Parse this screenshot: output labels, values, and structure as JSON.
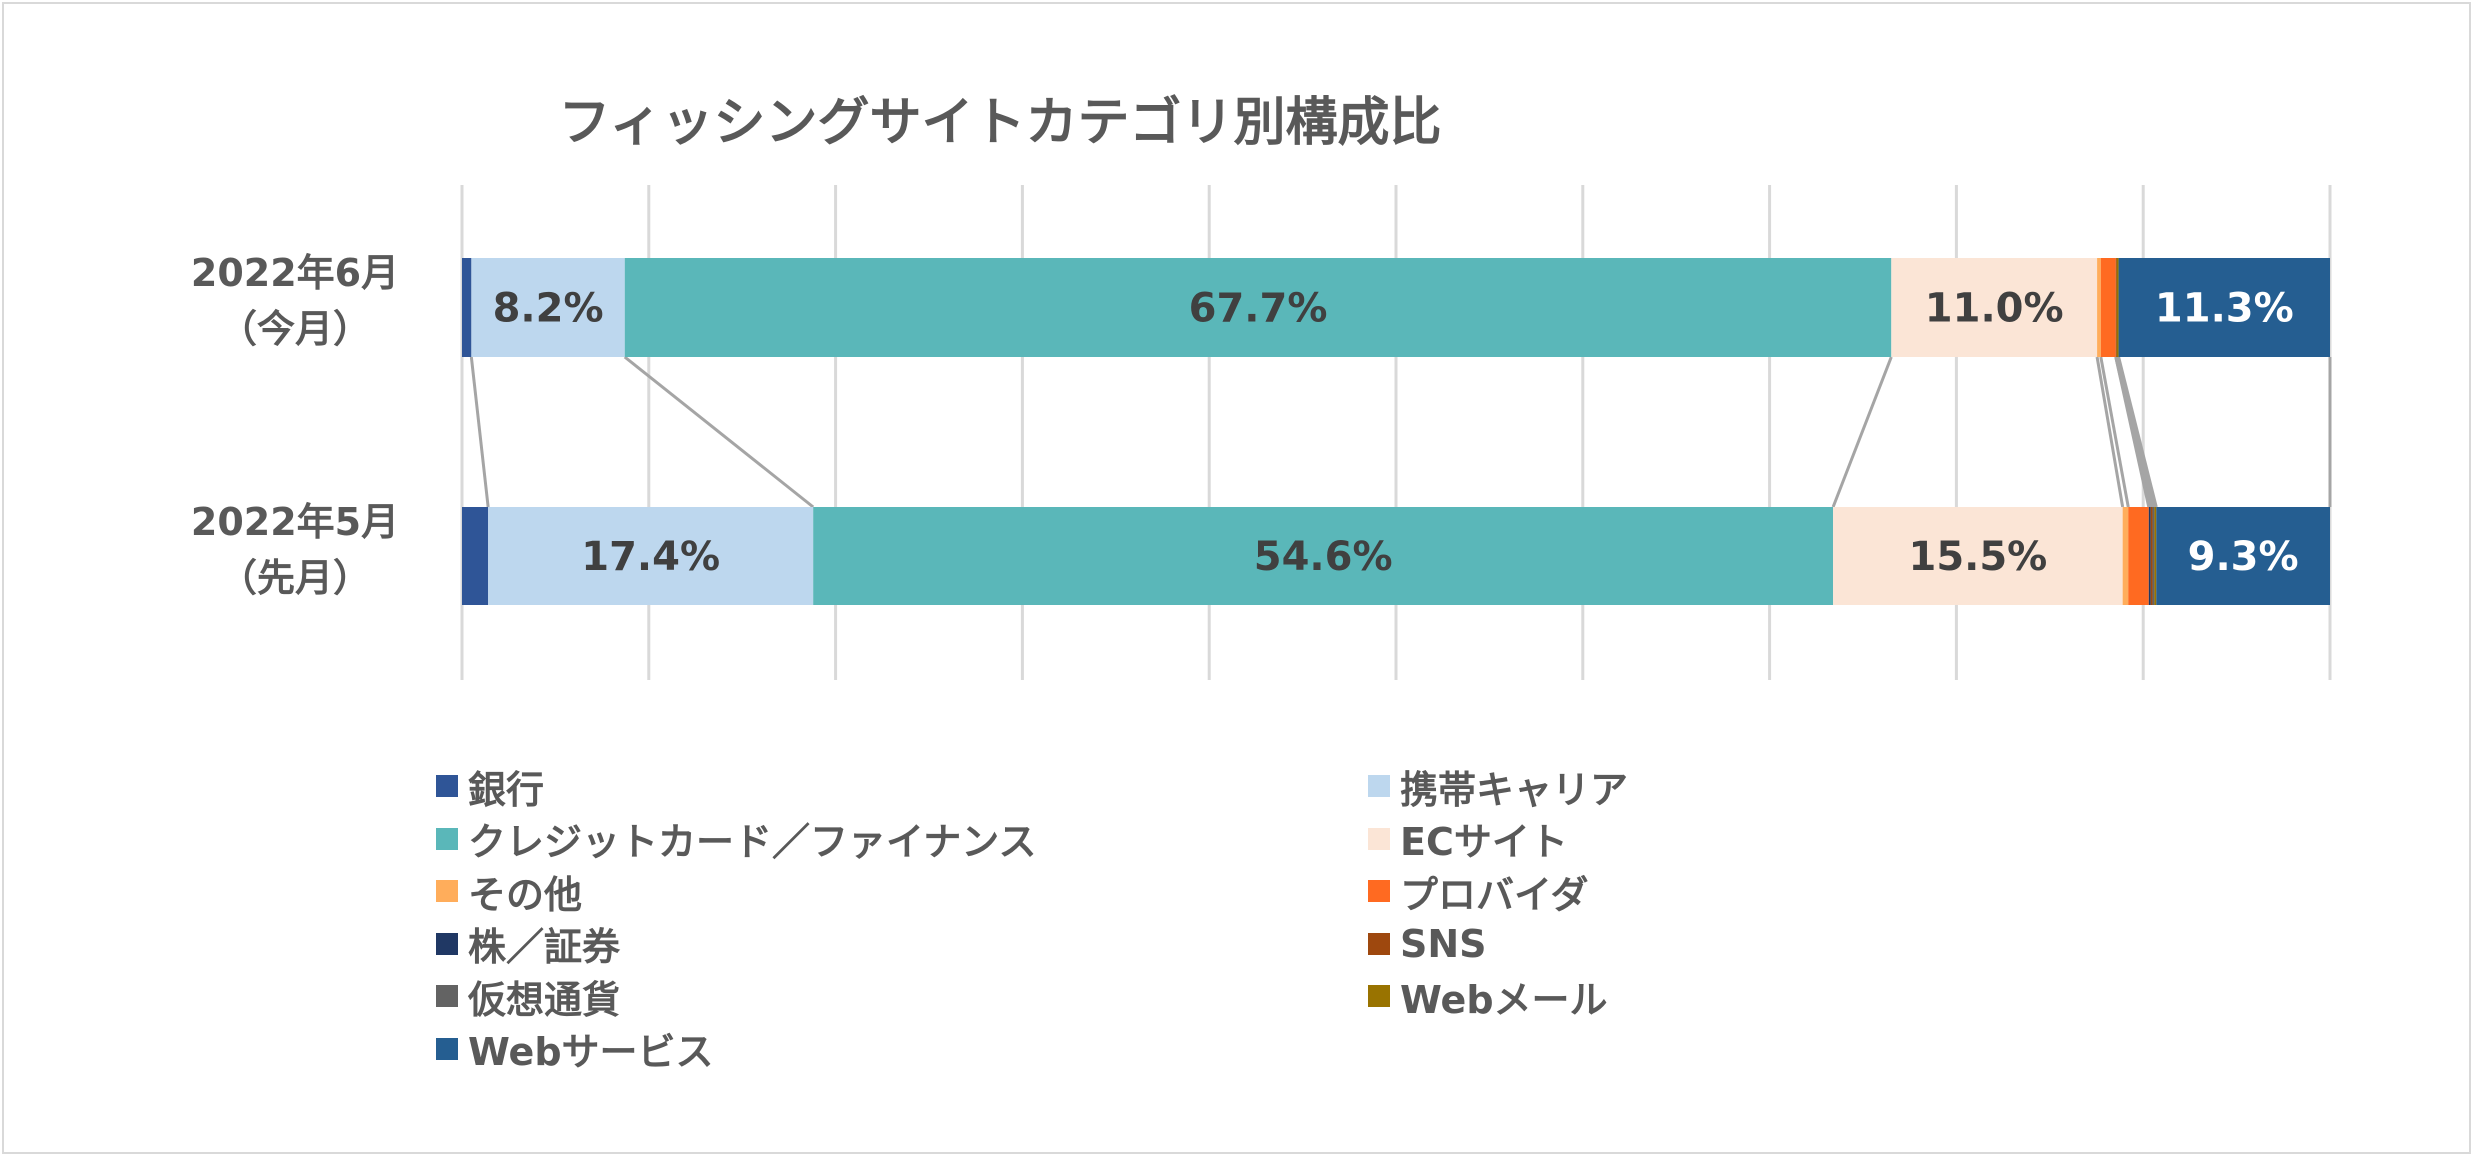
{
  "chart_data": {
    "type": "bar",
    "orientation": "horizontal",
    "stacked": "100%",
    "title": "フィッシングサイトカテゴリ別構成比",
    "categories": [
      "2022年6月（今月）",
      "2022年5月（先月）"
    ],
    "category_lines": [
      [
        "2022年6月",
        "（今月）"
      ],
      [
        "2022年5月",
        "（先月）"
      ]
    ],
    "xlim": [
      0,
      100
    ],
    "grid": true,
    "series_lines": true,
    "legend_position": "bottom",
    "series": [
      {
        "name": "銀行",
        "color": "#2f5597",
        "values": [
          0.5,
          1.4
        ]
      },
      {
        "name": "携帯キャリア",
        "color": "#bdd7ee",
        "values": [
          8.2,
          17.4
        ],
        "labels": [
          "8.2%",
          "17.4%"
        ]
      },
      {
        "name": "クレジットカード／ファイナンス",
        "color": "#5ab7b9",
        "values": [
          67.7,
          54.6
        ],
        "labels": [
          "67.7%",
          "54.6%"
        ]
      },
      {
        "name": "ECサイト",
        "color": "#fbe5d6",
        "values": [
          11.0,
          15.5
        ],
        "labels": [
          "11.0%",
          "15.5%"
        ]
      },
      {
        "name": "その他",
        "color": "#ffad5b",
        "values": [
          0.2,
          0.3
        ]
      },
      {
        "name": "プロバイダ",
        "color": "#ff6a21",
        "values": [
          0.8,
          1.1
        ]
      },
      {
        "name": "株／証券",
        "color": "#203864",
        "values": [
          0.0,
          0.1
        ]
      },
      {
        "name": "SNS",
        "color": "#9e480e",
        "values": [
          0.05,
          0.1
        ]
      },
      {
        "name": "仮想通貨",
        "color": "#636363",
        "values": [
          0.0,
          0.1
        ]
      },
      {
        "name": "Webメール",
        "color": "#997300",
        "values": [
          0.1,
          0.1
        ]
      },
      {
        "name": "Webサービス",
        "color": "#255e91",
        "values": [
          11.3,
          9.3
        ],
        "labels": [
          "11.3%",
          "9.3%"
        ],
        "label_color": "#ffffff"
      }
    ]
  }
}
